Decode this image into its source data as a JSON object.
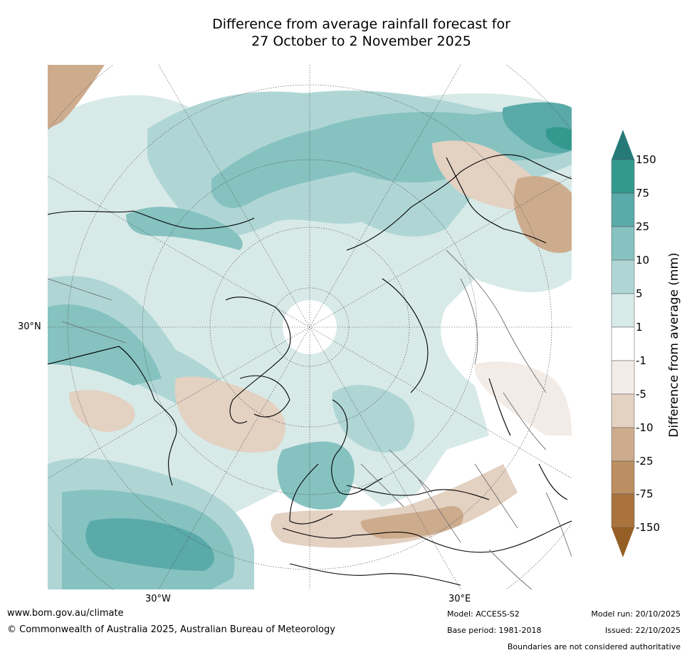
{
  "title": {
    "line1": "Difference from average rainfall forecast for",
    "line2": "27 October to 2 November 2025"
  },
  "map": {
    "lat_labels": [
      "30°N"
    ],
    "lon_labels": [
      "30°W",
      "30°E"
    ]
  },
  "legend": {
    "title": "Difference from average (mm)",
    "ticks": [
      "150",
      "75",
      "25",
      "10",
      "5",
      "1",
      "-1",
      "-5",
      "-10",
      "-25",
      "-75",
      "-150"
    ],
    "colors": {
      "gt150": "#257a77",
      "75_150": "#33998f",
      "25_75": "#5aaaa9",
      "10_25": "#86c2c0",
      "5_10": "#afd6d5",
      "1_5": "#d7eae8",
      "m1_1": "#ffffff",
      "m5_m1": "#f3ebe6",
      "m10_m5": "#e3d1c2",
      "m25_m10": "#cdac8e",
      "m75_m25": "#bc8f62",
      "m150_m75": "#aa733e",
      "lt_m150": "#955f25"
    }
  },
  "footer": {
    "website": "www.bom.gov.au/climate",
    "copyright": "© Commonwealth of Australia 2025, Australian Bureau of Meteorology",
    "model": "Model: ACCESS-S2",
    "base_period": "Base period: 1981-2018",
    "model_run": "Model run: 20/10/2025",
    "issued": "Issued: 22/10/2025",
    "boundaries": "Boundaries are not considered authoritative"
  }
}
